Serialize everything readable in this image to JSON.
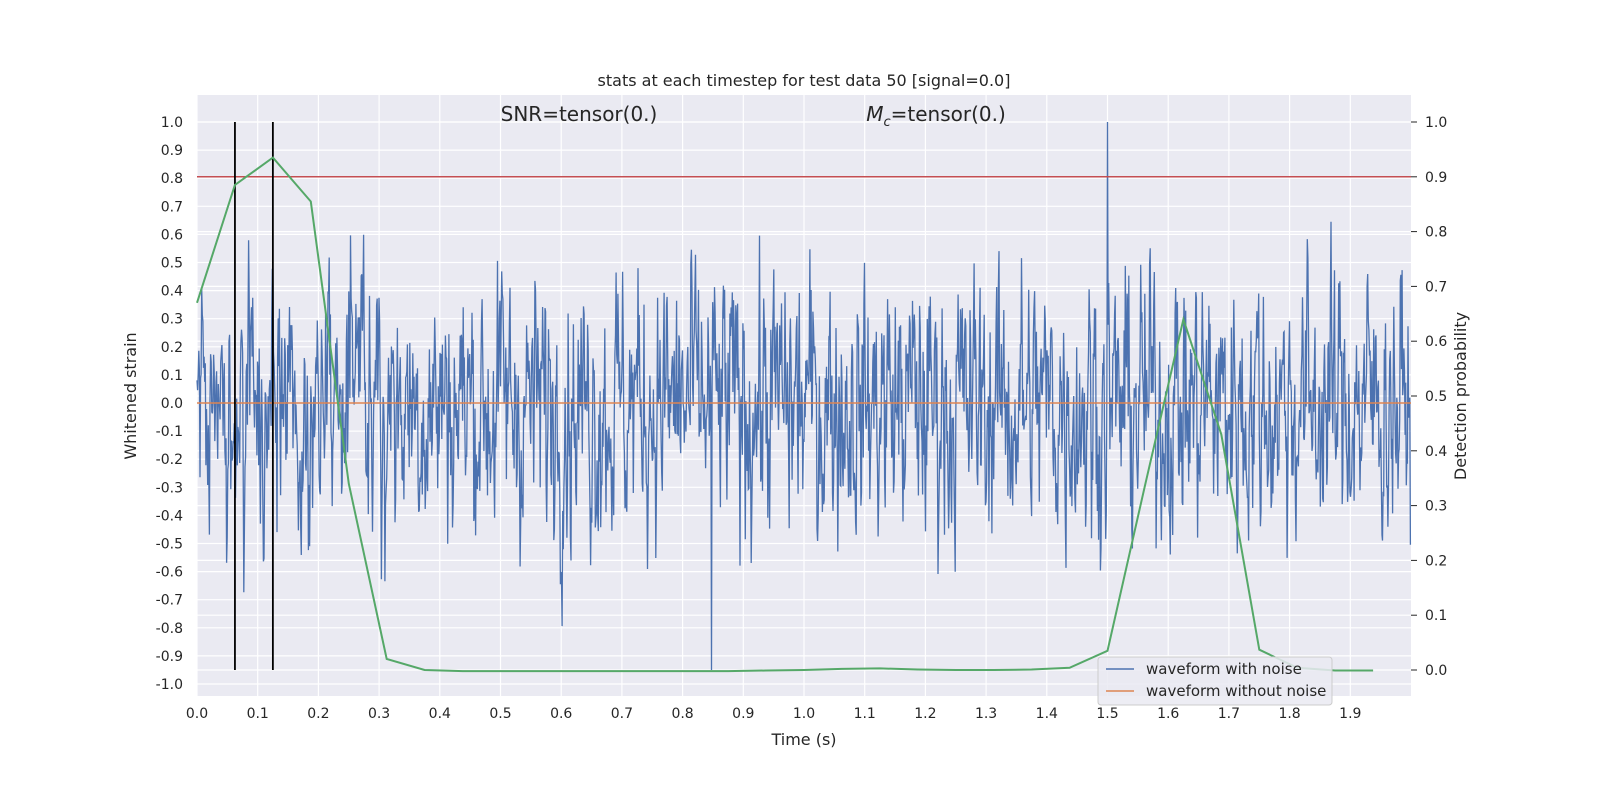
{
  "chart_data": {
    "type": "line",
    "title": "stats at each timestep for test data 50 [signal=0.0]",
    "xlabel": "Time (s)",
    "ylabel": "Whitened strain",
    "y2label": "Detection probability",
    "xlim": [
      0.0,
      2.0
    ],
    "ylim": [
      -1.05,
      1.05
    ],
    "y2lim": [
      -0.05,
      1.04
    ],
    "xticks": [
      "0.0",
      "0.1",
      "0.2",
      "0.3",
      "0.4",
      "0.5",
      "0.6",
      "0.7",
      "0.8",
      "0.9",
      "1.0",
      "1.1",
      "1.2",
      "1.3",
      "1.4",
      "1.5",
      "1.6",
      "1.7",
      "1.8",
      "1.9"
    ],
    "yticks": [
      "1.0",
      "0.9",
      "0.8",
      "0.7",
      "0.6",
      "0.5",
      "0.4",
      "0.3",
      "0.2",
      "0.1",
      "0.0",
      "-0.1",
      "-0.2",
      "-0.3",
      "-0.4",
      "-0.5",
      "-0.6",
      "-0.7",
      "-0.8",
      "-0.9",
      "-1.0"
    ],
    "y2ticks": [
      "1.0",
      "0.9",
      "0.8",
      "0.7",
      "0.6",
      "0.5",
      "0.4",
      "0.3",
      "0.2",
      "0.1",
      "0.0"
    ],
    "annotations": {
      "snr": "SNR=tensor(0.)",
      "mc_symbol": "M",
      "mc_sub": "c",
      "mc_value": "=tensor(0.)"
    },
    "grid": true,
    "legend_position": "lower-right",
    "series": [
      {
        "name": "waveform with noise",
        "color": "#4c72b0",
        "axis": "left",
        "description": "noisy whitened strain, 2048 samples spanning 0-2 s, amplitude normalized to max 1.0 near t=1.5 s"
      },
      {
        "name": "waveform without noise",
        "color": "#dd8452",
        "axis": "left",
        "x": [
          0.0,
          2.0
        ],
        "y": [
          0.0,
          0.0
        ]
      },
      {
        "name": "detection probability",
        "color": "#55a868",
        "axis": "right",
        "x": [
          0.0,
          0.0625,
          0.125,
          0.1875,
          0.25,
          0.3125,
          0.375,
          0.4375,
          0.5,
          0.5625,
          0.625,
          0.6875,
          0.75,
          0.8125,
          0.875,
          0.9375,
          1.0,
          1.0625,
          1.125,
          1.1875,
          1.25,
          1.3125,
          1.375,
          1.4375,
          1.5,
          1.5625,
          1.625,
          1.6875,
          1.75,
          1.8125,
          1.875,
          1.9375
        ],
        "y": [
          0.67,
          0.885,
          0.935,
          0.855,
          0.34,
          0.02,
          0.0,
          -0.002,
          -0.002,
          -0.002,
          -0.002,
          -0.002,
          -0.002,
          -0.002,
          -0.002,
          -0.001,
          0.0,
          0.002,
          0.003,
          0.001,
          0.0,
          0.0,
          0.001,
          0.004,
          0.035,
          0.34,
          0.64,
          0.43,
          0.037,
          0.004,
          -0.001,
          -0.001
        ]
      }
    ],
    "threshold_line": {
      "color": "#c44e52",
      "axis": "left",
      "y": 0.805
    },
    "vertical_lines": {
      "color": "#000000",
      "x": [
        0.0625,
        0.125
      ]
    }
  }
}
